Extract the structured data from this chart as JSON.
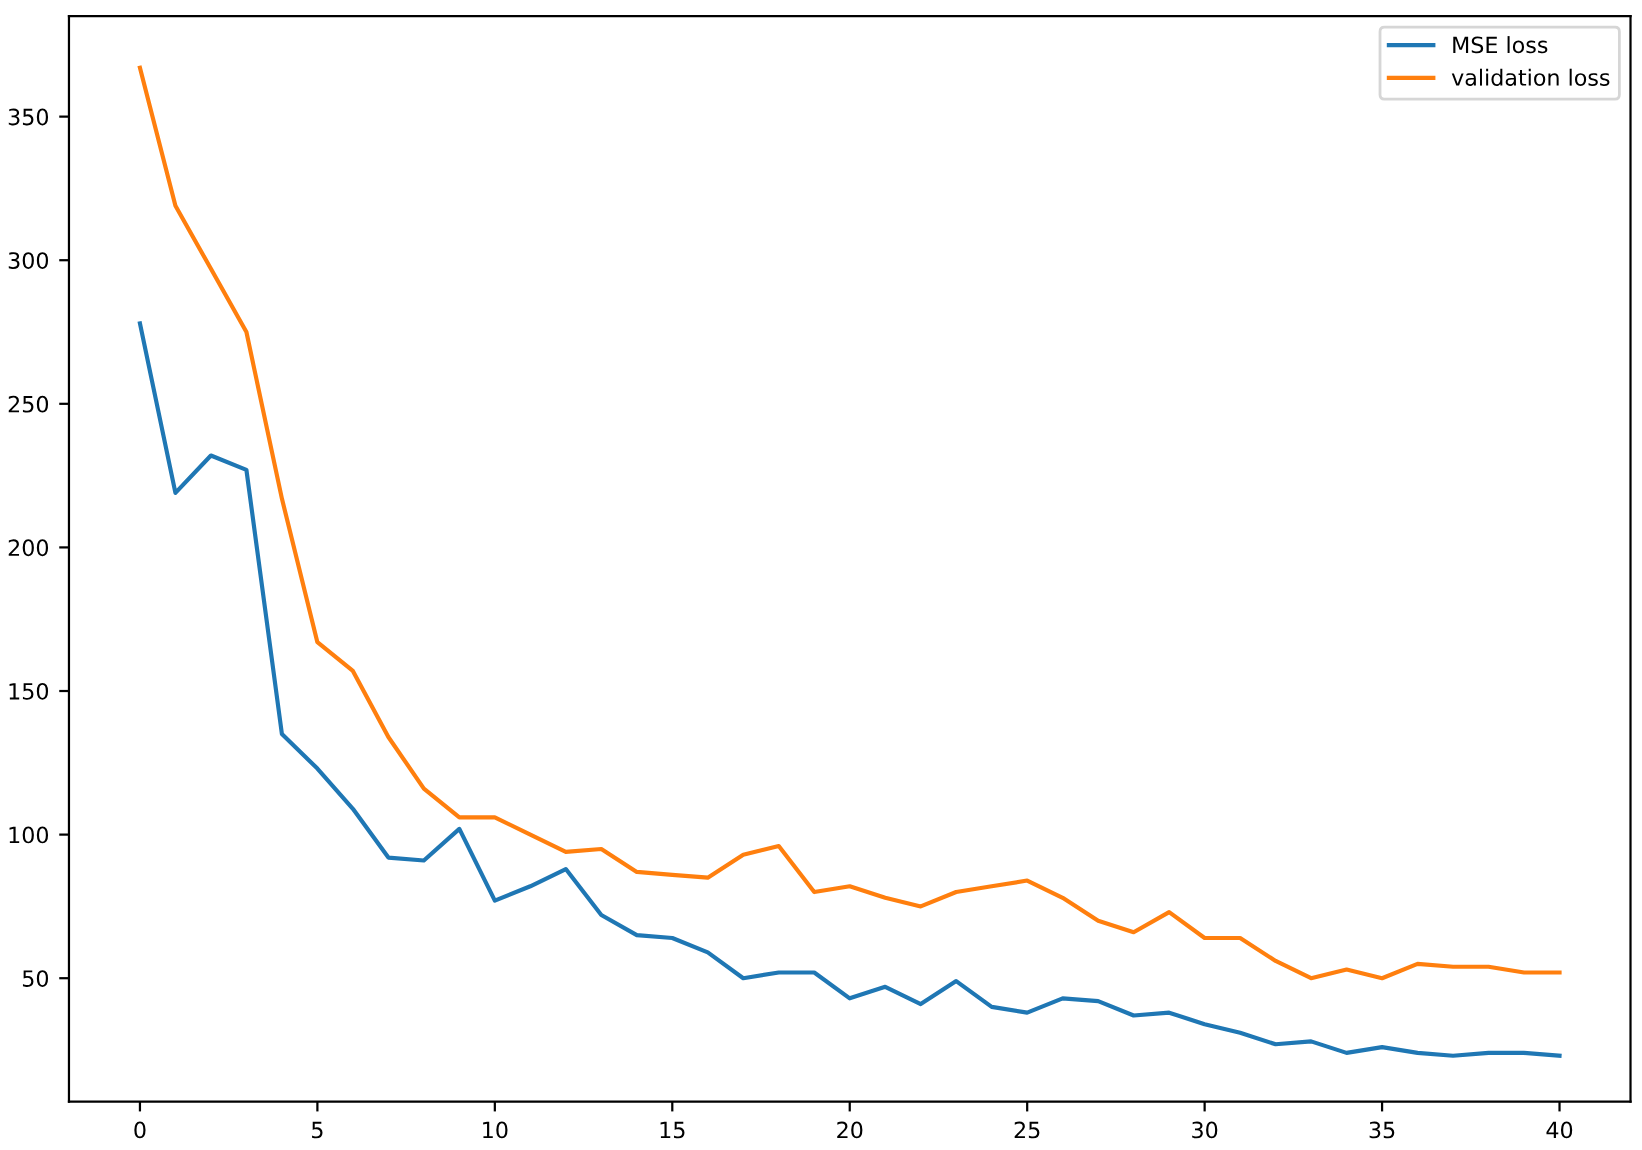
{
  "chart_data": {
    "type": "line",
    "x": [
      0,
      1,
      2,
      3,
      4,
      5,
      6,
      7,
      8,
      9,
      10,
      11,
      12,
      13,
      14,
      15,
      16,
      17,
      18,
      19,
      20,
      21,
      22,
      23,
      24,
      25,
      26,
      27,
      28,
      29,
      30,
      31,
      32,
      33,
      34,
      35,
      36,
      37,
      38,
      39,
      40
    ],
    "series": [
      {
        "name": "MSE loss",
        "color": "#1f77b4",
        "values": [
          278,
          219,
          232,
          227,
          135,
          123,
          109,
          92,
          91,
          102,
          77,
          82,
          88,
          72,
          65,
          64,
          59,
          50,
          52,
          52,
          43,
          47,
          41,
          49,
          40,
          38,
          43,
          42,
          37,
          38,
          34,
          31,
          27,
          28,
          24,
          26,
          24,
          23,
          24,
          24,
          23
        ]
      },
      {
        "name": "validation loss",
        "color": "#ff7f0e",
        "values": [
          367,
          319,
          297,
          275,
          217,
          167,
          157,
          134,
          116,
          106,
          106,
          100,
          94,
          95,
          87,
          86,
          85,
          93,
          96,
          80,
          82,
          78,
          75,
          80,
          82,
          84,
          78,
          70,
          66,
          73,
          64,
          64,
          56,
          50,
          53,
          50,
          55,
          54,
          54,
          52,
          52
        ]
      }
    ],
    "xlim": [
      -2,
      42
    ],
    "xticks": [
      0,
      5,
      10,
      15,
      20,
      25,
      30,
      35,
      40
    ],
    "ylim": [
      7,
      385
    ],
    "yticks": [
      50,
      100,
      150,
      200,
      250,
      300,
      350
    ],
    "legend": "top right",
    "grid": false
  }
}
